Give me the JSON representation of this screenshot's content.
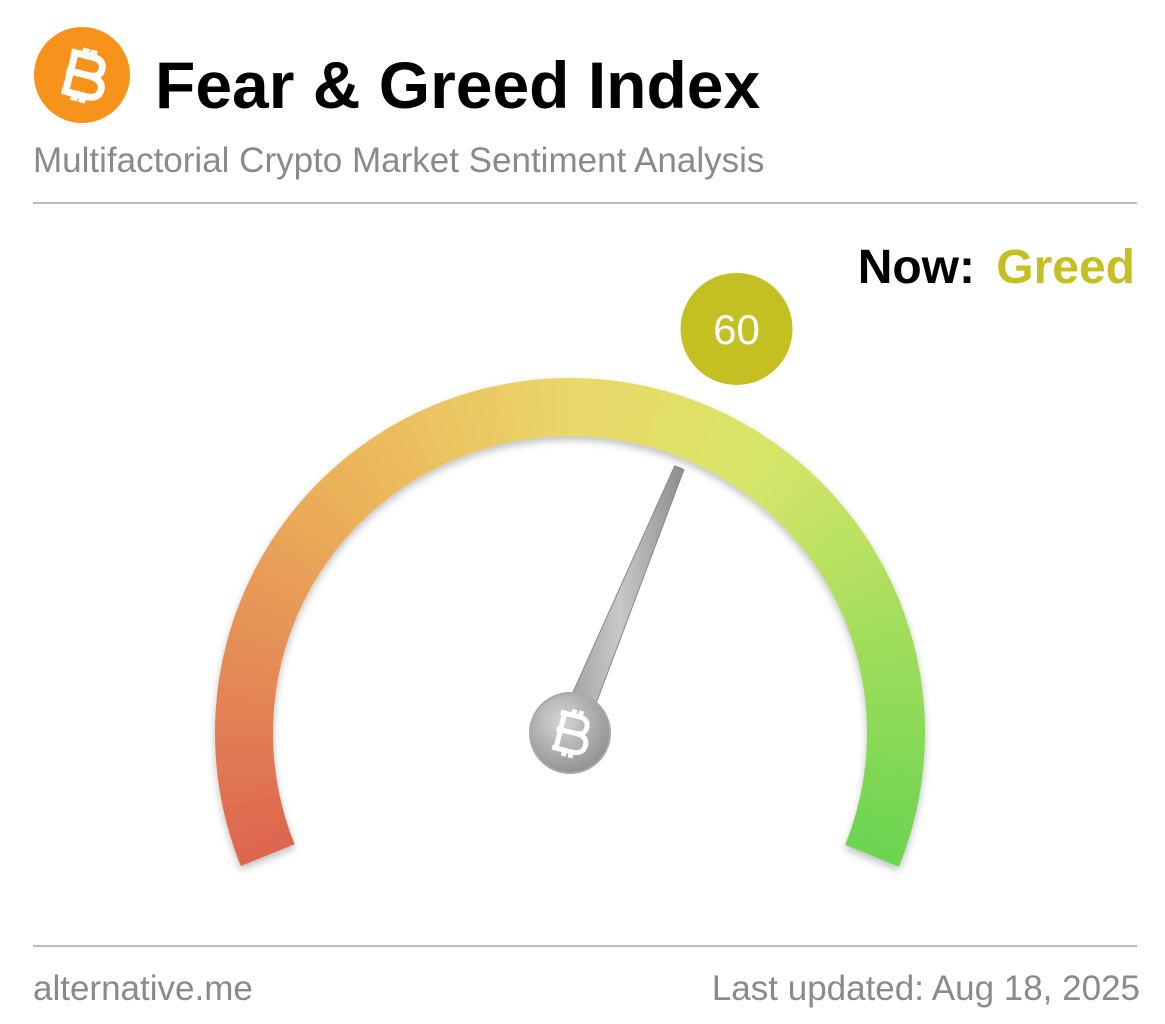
{
  "chart_data": {
    "type": "gauge",
    "title": "Fear & Greed Index",
    "subtitle": "Multifactorial Crypto Market Sentiment Analysis",
    "now_label": "Now:",
    "classification": "Greed",
    "value": 60,
    "color": "#c4c024",
    "ylim": [
      0,
      100
    ],
    "source": "alternative.me",
    "updated": "Last updated: Aug 18, 2025"
  }
}
